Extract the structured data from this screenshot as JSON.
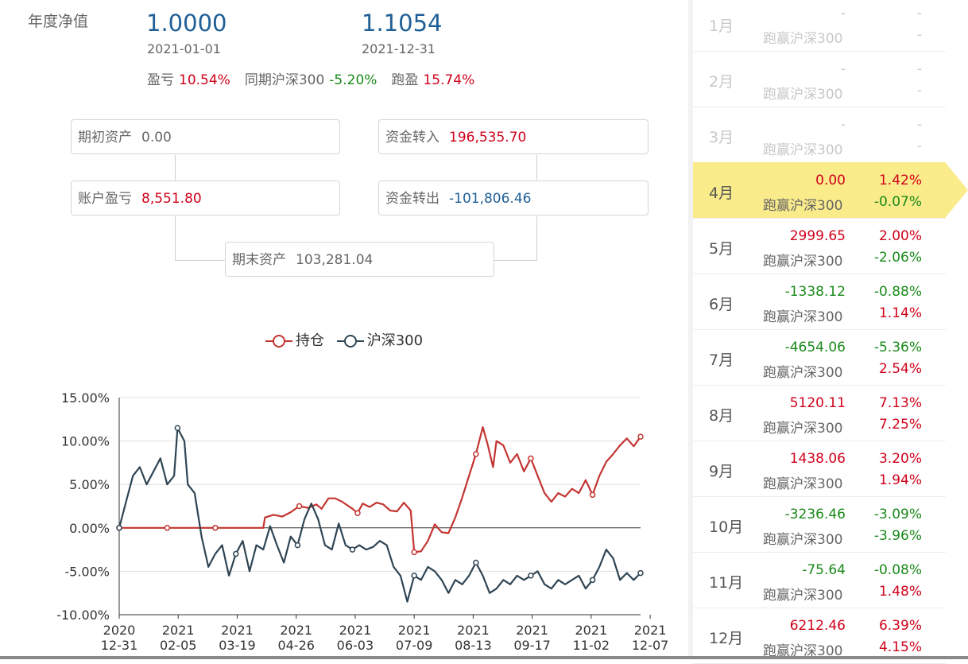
{
  "summary": {
    "annual_nav_label": "年度净值",
    "start_nav": "1.0000",
    "start_date": "2021-01-01",
    "end_nav": "1.1054",
    "end_date": "2021-12-31",
    "pnl_label": "盈亏",
    "pnl_value": "10.54%",
    "bench_label": "同期沪深300",
    "bench_value": "-5.20%",
    "excess_label": "跑盈",
    "excess_value": "15.74%"
  },
  "flow": {
    "opening_label": "期初资产",
    "opening_value": "0.00",
    "inflow_label": "资金转入",
    "inflow_value": "196,535.70",
    "account_pnl_label": "账户盈亏",
    "account_pnl_value": "8,551.80",
    "outflow_label": "资金转出",
    "outflow_value": "-101,806.46",
    "closing_label": "期末资产",
    "closing_value": "103,281.04"
  },
  "colors": {
    "holding": "#c23531",
    "index": "#2f4554",
    "positive": "#d0021b",
    "negative": "#1a8a1a",
    "highlight": "#faeb8b"
  },
  "chart_data": {
    "type": "line",
    "legend": [
      "持仓",
      "沪深300"
    ],
    "ylim": [
      -10,
      15
    ],
    "yticks": [
      "15.00%",
      "10.00%",
      "5.00%",
      "0.00%",
      "-5.00%",
      "-10.00%"
    ],
    "xticks": [
      {
        "year": "2020",
        "day": "12-31"
      },
      {
        "year": "2021",
        "day": "02-05"
      },
      {
        "year": "2021",
        "day": "03-19"
      },
      {
        "year": "2021",
        "day": "04-26"
      },
      {
        "year": "2021",
        "day": "06-03"
      },
      {
        "year": "2021",
        "day": "07-09"
      },
      {
        "year": "2021",
        "day": "08-13"
      },
      {
        "year": "2021",
        "day": "09-17"
      },
      {
        "year": "2021",
        "day": "11-02"
      },
      {
        "year": "2021",
        "day": "12-07"
      }
    ],
    "series": [
      {
        "name": "持仓",
        "points": [
          [
            0,
            0
          ],
          [
            28,
            0
          ],
          [
            56,
            0
          ],
          [
            84,
            0
          ],
          [
            85,
            1.2
          ],
          [
            90,
            1.5
          ],
          [
            95,
            1.3
          ],
          [
            100,
            1.8
          ],
          [
            105,
            2.5
          ],
          [
            110,
            2.3
          ],
          [
            115,
            2.7
          ],
          [
            118,
            2.2
          ],
          [
            122,
            3.4
          ],
          [
            126,
            3.4
          ],
          [
            130,
            3.0
          ],
          [
            133,
            2.6
          ],
          [
            136,
            2.2
          ],
          [
            139,
            1.7
          ],
          [
            142,
            2.8
          ],
          [
            146,
            2.4
          ],
          [
            150,
            2.9
          ],
          [
            154,
            2.7
          ],
          [
            158,
            2.0
          ],
          [
            162,
            1.9
          ],
          [
            166,
            2.9
          ],
          [
            170,
            2.0
          ],
          [
            172,
            -2.8
          ],
          [
            176,
            -2.7
          ],
          [
            180,
            -1.5
          ],
          [
            184,
            0.4
          ],
          [
            188,
            -0.5
          ],
          [
            192,
            -0.6
          ],
          [
            196,
            1.2
          ],
          [
            200,
            3.5
          ],
          [
            204,
            6.0
          ],
          [
            208,
            8.5
          ],
          [
            212,
            11.6
          ],
          [
            215,
            9.5
          ],
          [
            218,
            7.0
          ],
          [
            220,
            10.0
          ],
          [
            224,
            9.5
          ],
          [
            228,
            7.5
          ],
          [
            232,
            8.5
          ],
          [
            236,
            6.5
          ],
          [
            240,
            8.0
          ],
          [
            244,
            6.0
          ],
          [
            248,
            4.0
          ],
          [
            252,
            3.0
          ],
          [
            256,
            4.0
          ],
          [
            260,
            3.6
          ],
          [
            264,
            4.5
          ],
          [
            268,
            4.0
          ],
          [
            272,
            5.5
          ],
          [
            276,
            3.8
          ],
          [
            280,
            6.0
          ],
          [
            284,
            7.6
          ],
          [
            288,
            8.5
          ],
          [
            292,
            9.5
          ],
          [
            296,
            10.3
          ],
          [
            300,
            9.4
          ],
          [
            304,
            10.5
          ]
        ]
      },
      {
        "name": "沪深300",
        "points": [
          [
            0,
            0
          ],
          [
            4,
            3.0
          ],
          [
            8,
            6.0
          ],
          [
            12,
            7.0
          ],
          [
            16,
            5.0
          ],
          [
            20,
            6.5
          ],
          [
            24,
            8.0
          ],
          [
            28,
            5.0
          ],
          [
            32,
            6.0
          ],
          [
            34,
            11.5
          ],
          [
            38,
            10.0
          ],
          [
            40,
            5.0
          ],
          [
            44,
            4.0
          ],
          [
            48,
            -1.0
          ],
          [
            52,
            -4.5
          ],
          [
            56,
            -3.0
          ],
          [
            60,
            -2.0
          ],
          [
            64,
            -5.5
          ],
          [
            68,
            -3.0
          ],
          [
            72,
            -1.5
          ],
          [
            76,
            -5.0
          ],
          [
            80,
            -2.0
          ],
          [
            84,
            -2.5
          ],
          [
            88,
            0.2
          ],
          [
            92,
            -2.0
          ],
          [
            96,
            -4.0
          ],
          [
            100,
            -1.0
          ],
          [
            104,
            -2.0
          ],
          [
            108,
            1.0
          ],
          [
            112,
            2.8
          ],
          [
            116,
            1.0
          ],
          [
            120,
            -2.0
          ],
          [
            124,
            -2.5
          ],
          [
            128,
            0.5
          ],
          [
            132,
            -2.0
          ],
          [
            136,
            -2.5
          ],
          [
            140,
            -2.0
          ],
          [
            144,
            -2.5
          ],
          [
            148,
            -2.2
          ],
          [
            152,
            -1.5
          ],
          [
            156,
            -2.0
          ],
          [
            160,
            -4.5
          ],
          [
            164,
            -5.5
          ],
          [
            168,
            -8.5
          ],
          [
            172,
            -5.5
          ],
          [
            176,
            -6.0
          ],
          [
            180,
            -4.5
          ],
          [
            184,
            -5.0
          ],
          [
            188,
            -6.0
          ],
          [
            192,
            -7.5
          ],
          [
            196,
            -6.0
          ],
          [
            200,
            -6.5
          ],
          [
            204,
            -5.5
          ],
          [
            208,
            -4.0
          ],
          [
            212,
            -5.5
          ],
          [
            216,
            -7.5
          ],
          [
            220,
            -7.0
          ],
          [
            224,
            -6.0
          ],
          [
            228,
            -6.5
          ],
          [
            232,
            -5.5
          ],
          [
            236,
            -6.0
          ],
          [
            240,
            -5.5
          ],
          [
            244,
            -5.0
          ],
          [
            248,
            -6.5
          ],
          [
            252,
            -7.0
          ],
          [
            256,
            -6.0
          ],
          [
            260,
            -6.5
          ],
          [
            264,
            -6.0
          ],
          [
            268,
            -5.5
          ],
          [
            272,
            -7.0
          ],
          [
            276,
            -6.0
          ],
          [
            280,
            -4.5
          ],
          [
            284,
            -2.5
          ],
          [
            288,
            -3.5
          ],
          [
            292,
            -6.0
          ],
          [
            296,
            -5.2
          ],
          [
            300,
            -6.0
          ],
          [
            304,
            -5.2
          ]
        ]
      }
    ],
    "n_points": 304
  },
  "months": [
    {
      "name": "1月",
      "pnl": "-",
      "pct": "-",
      "bench_label": "跑赢沪深300",
      "bench_pct": "-",
      "dim": true
    },
    {
      "name": "2月",
      "pnl": "-",
      "pct": "-",
      "bench_label": "跑赢沪深300",
      "bench_pct": "-",
      "dim": true
    },
    {
      "name": "3月",
      "pnl": "-",
      "pct": "-",
      "bench_label": "跑赢沪深300",
      "bench_pct": "-",
      "dim": true
    },
    {
      "name": "4月",
      "pnl": "0.00",
      "pct": "1.42%",
      "bench_label": "跑赢沪深300",
      "bench_pct": "-0.07%",
      "active": true
    },
    {
      "name": "5月",
      "pnl": "2999.65",
      "pct": "2.00%",
      "bench_label": "跑赢沪深300",
      "bench_pct": "-2.06%"
    },
    {
      "name": "6月",
      "pnl": "-1338.12",
      "pct": "-0.88%",
      "bench_label": "跑赢沪深300",
      "bench_pct": "1.14%"
    },
    {
      "name": "7月",
      "pnl": "-4654.06",
      "pct": "-5.36%",
      "bench_label": "跑赢沪深300",
      "bench_pct": "2.54%"
    },
    {
      "name": "8月",
      "pnl": "5120.11",
      "pct": "7.13%",
      "bench_label": "跑赢沪深300",
      "bench_pct": "7.25%"
    },
    {
      "name": "9月",
      "pnl": "1438.06",
      "pct": "3.20%",
      "bench_label": "跑赢沪深300",
      "bench_pct": "1.94%"
    },
    {
      "name": "10月",
      "pnl": "-3236.46",
      "pct": "-3.09%",
      "bench_label": "跑赢沪深300",
      "bench_pct": "-3.96%"
    },
    {
      "name": "11月",
      "pnl": "-75.64",
      "pct": "-0.08%",
      "bench_label": "跑赢沪深300",
      "bench_pct": "1.48%"
    },
    {
      "name": "12月",
      "pnl": "6212.46",
      "pct": "6.39%",
      "bench_label": "跑赢沪深300",
      "bench_pct": "4.15%"
    }
  ]
}
